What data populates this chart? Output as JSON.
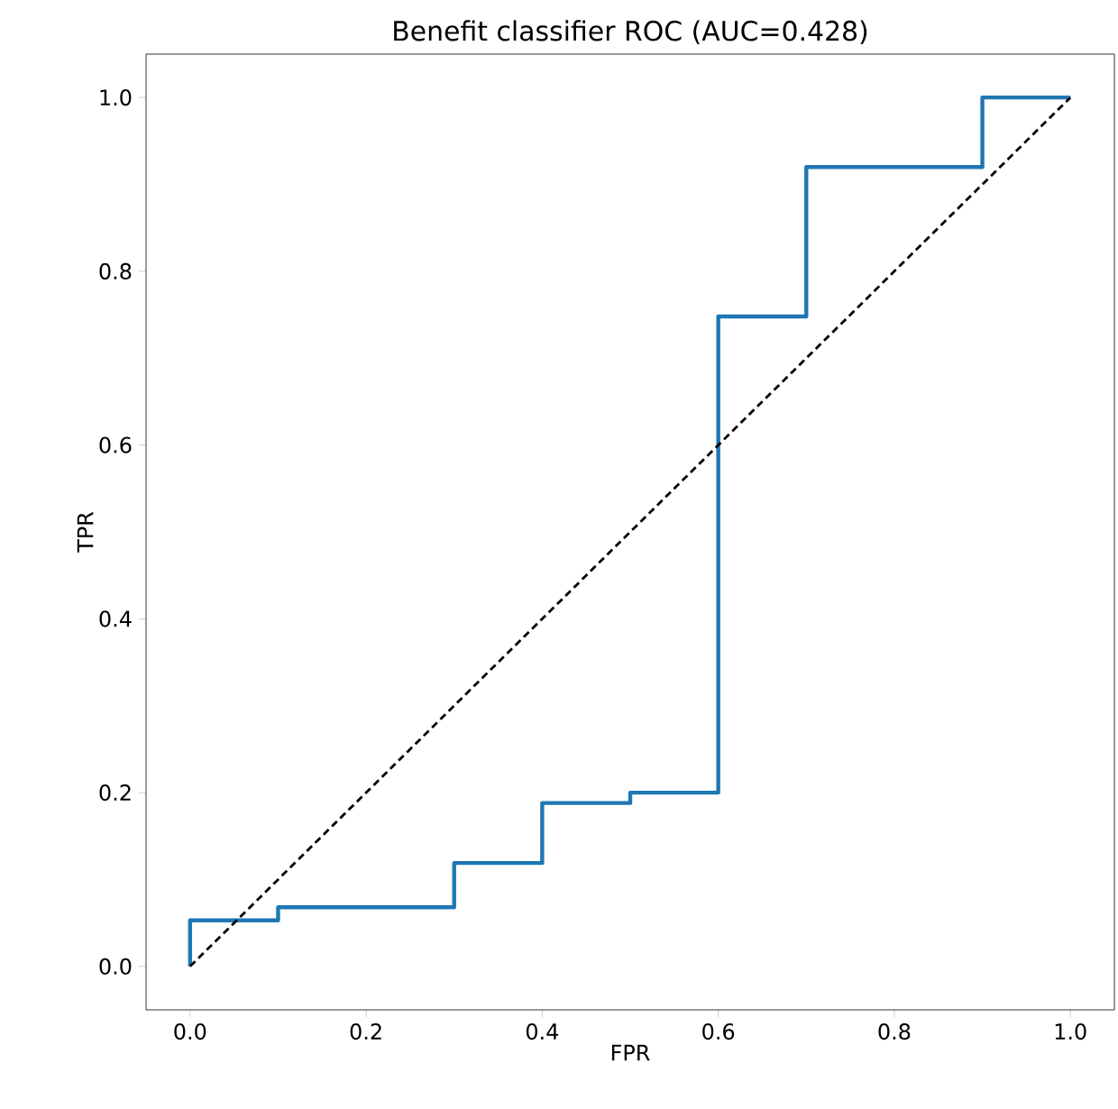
{
  "chart_data": {
    "type": "line",
    "title": "Benefit classifier ROC (AUC=0.428)",
    "xlabel": "FPR",
    "ylabel": "TPR",
    "xlim": [
      -0.05,
      1.05
    ],
    "ylim": [
      -0.05,
      1.05
    ],
    "xticks": [
      {
        "value": 0,
        "label": "0.0"
      },
      {
        "value": 0.2,
        "label": "0.2"
      },
      {
        "value": 0.4,
        "label": "0.4"
      },
      {
        "value": 0.6,
        "label": "0.6"
      },
      {
        "value": 0.8,
        "label": "0.8"
      },
      {
        "value": 1,
        "label": "1.0"
      }
    ],
    "yticks": [
      {
        "value": 0,
        "label": "0.0"
      },
      {
        "value": 0.2,
        "label": "0.2"
      },
      {
        "value": 0.4,
        "label": "0.4"
      },
      {
        "value": 0.6,
        "label": "0.6"
      },
      {
        "value": 0.8,
        "label": "0.8"
      },
      {
        "value": 1,
        "label": "1.0"
      }
    ],
    "marker": "none",
    "series": [
      {
        "color": "#1f77b4",
        "line_style": "solid",
        "x": [
          0,
          0,
          0.1,
          0.1,
          0.3,
          0.3,
          0.4,
          0.4,
          0.5,
          0.5,
          0.6,
          0.6,
          0.7,
          0.7,
          0.9,
          0.9,
          1
        ],
        "values": [
          0,
          0.053,
          0.053,
          0.068,
          0.068,
          0.119,
          0.119,
          0.188,
          0.188,
          0.2,
          0.2,
          0.748,
          0.748,
          0.92,
          0.92,
          1,
          1
        ]
      },
      {
        "color": "#000000",
        "line_style": "dashed",
        "x": [
          0,
          1
        ],
        "values": [
          0,
          1
        ]
      }
    ]
  }
}
